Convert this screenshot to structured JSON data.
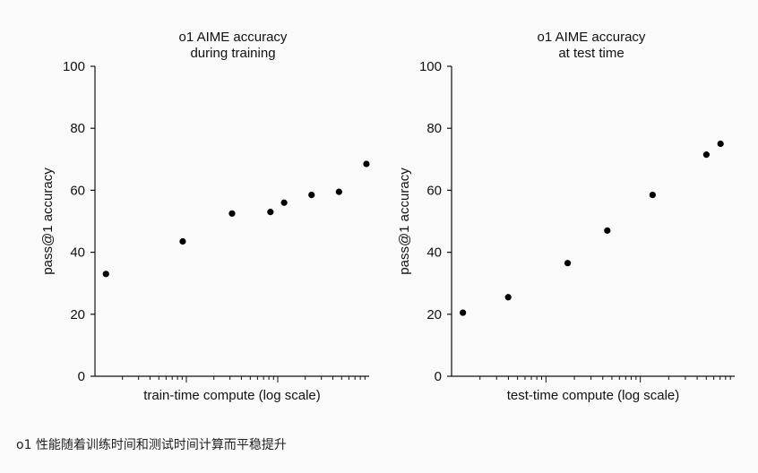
{
  "chart_data": [
    {
      "type": "scatter",
      "title": "o1 AIME accuracy during training",
      "title_lines": [
        "o1 AIME accuracy",
        "during training"
      ],
      "xlabel": "train-time compute (log scale)",
      "ylabel": "pass@1 accuracy",
      "xscale": "log",
      "x_tick_labels": false,
      "ylim": [
        0,
        100
      ],
      "yticks": [
        0,
        20,
        40,
        60,
        80,
        100
      ],
      "grid": false,
      "legend": "none",
      "point_color": "#000000",
      "x_relative_log": [
        0.04,
        0.32,
        0.5,
        0.64,
        0.69,
        0.79,
        0.89,
        0.99
      ],
      "y": [
        33,
        43.5,
        52.5,
        53,
        56,
        58.5,
        59.5,
        68.5
      ]
    },
    {
      "type": "scatter",
      "title": "o1 AIME accuracy at test time",
      "title_lines": [
        "o1 AIME accuracy",
        "at test time"
      ],
      "xlabel": "test-time compute (log scale)",
      "ylabel": "pass@1 accuracy",
      "xscale": "log",
      "x_tick_labels": false,
      "ylim": [
        0,
        100
      ],
      "yticks": [
        0,
        20,
        40,
        60,
        80,
        100
      ],
      "grid": false,
      "legend": "none",
      "point_color": "#000000",
      "x_relative_log": [
        0.04,
        0.2,
        0.41,
        0.55,
        0.71,
        0.9,
        0.95
      ],
      "y": [
        20.5,
        25.5,
        36.5,
        47,
        58.5,
        71.5,
        75
      ]
    }
  ],
  "caption": "o1 性能随着训练时间和测试时间计算而平稳提升"
}
